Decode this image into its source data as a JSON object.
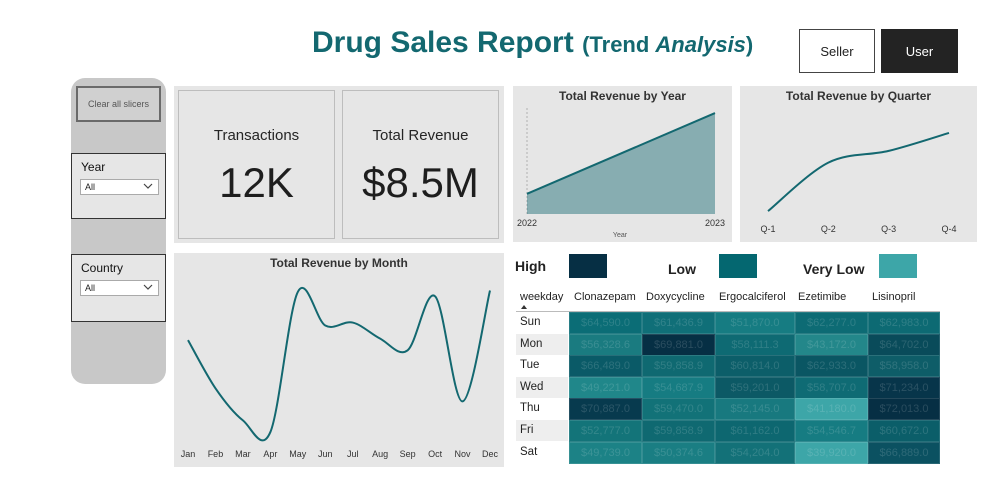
{
  "header": {
    "title_main": "Drug Sales Report",
    "title_paren_open": "(Trend ",
    "title_italic": "Analysis",
    "title_paren_close": ")",
    "seller_label": "Seller",
    "user_label": "User"
  },
  "slicers": {
    "clear_label": "Clear all slicers",
    "year": {
      "label": "Year",
      "value": "All"
    },
    "country": {
      "label": "Country",
      "value": "All"
    }
  },
  "kpis": {
    "transactions": {
      "label": "Transactions",
      "value": "12K"
    },
    "revenue": {
      "label": "Total Revenue",
      "value": "$8.5M"
    }
  },
  "chart_data": [
    {
      "type": "area",
      "title": "Total Revenue by Year",
      "xlabel": "Year",
      "categories": [
        "2022",
        "2023"
      ],
      "values": [
        0.2,
        1.0
      ],
      "ylim": [
        0,
        1.05
      ],
      "color": "#136870"
    },
    {
      "type": "line",
      "title": "Total Revenue by Quarter",
      "categories": [
        "Q-1",
        "Q-2",
        "Q-3",
        "Q-4"
      ],
      "values": [
        0.0,
        0.62,
        0.77,
        1.0
      ],
      "ylim": [
        -0.05,
        1.05
      ],
      "color": "#136870"
    },
    {
      "type": "line",
      "title": "Total Revenue by Month",
      "categories": [
        "Jan",
        "Feb",
        "Mar",
        "Apr",
        "May",
        "Jun",
        "Jul",
        "Aug",
        "Sep",
        "Oct",
        "Nov",
        "Dec"
      ],
      "values": [
        0.65,
        0.32,
        0.1,
        0.02,
        0.98,
        0.75,
        0.77,
        0.66,
        0.58,
        0.95,
        0.23,
        0.99
      ],
      "ylim": [
        0,
        1.0
      ],
      "color": "#136870"
    }
  ],
  "matrix": {
    "legend": [
      {
        "label": "High",
        "color": "#062f44"
      },
      {
        "label": "Low",
        "color": "#046770"
      },
      {
        "label": "Very Low",
        "color": "#3da6a8"
      }
    ],
    "row_header": "weekday",
    "columns": [
      "Clonazepam",
      "Doxycycline",
      "Ergocalciferol",
      "Ezetimibe",
      "Lisinopril"
    ],
    "rows": [
      {
        "day": "Sun",
        "cells": [
          {
            "t": "$64,590.0",
            "c": "#0b6d76"
          },
          {
            "t": "$61,436.9",
            "c": "#106f78"
          },
          {
            "t": "$51,870.0",
            "c": "#167c82"
          },
          {
            "t": "$62,277.0",
            "c": "#0d6b74"
          },
          {
            "t": "$62,983.0",
            "c": "#0d6a73"
          }
        ]
      },
      {
        "day": "Mon",
        "cells": [
          {
            "t": "$56,328.6",
            "c": "#1a7b80"
          },
          {
            "t": "$69,881.0",
            "c": "#062f44"
          },
          {
            "t": "$58,111.3",
            "c": "#0e6a73"
          },
          {
            "t": "$43,172.0",
            "c": "#23878a"
          },
          {
            "t": "$64,702.0",
            "c": "#094b5a"
          }
        ]
      },
      {
        "day": "Tue",
        "cells": [
          {
            "t": "$66,489.0",
            "c": "#0a5a67"
          },
          {
            "t": "$59,858.9",
            "c": "#0f6971"
          },
          {
            "t": "$60,814.0",
            "c": "#0c5e69"
          },
          {
            "t": "$62,933.0",
            "c": "#0a5663"
          },
          {
            "t": "$58,958.0",
            "c": "#0e5d68"
          }
        ]
      },
      {
        "day": "Wed",
        "cells": [
          {
            "t": "$49,221.0",
            "c": "#20878a"
          },
          {
            "t": "$54,687.9",
            "c": "#167c82"
          },
          {
            "t": "$59,201.0",
            "c": "#0c5965"
          },
          {
            "t": "$58,707.0",
            "c": "#0f6b74"
          },
          {
            "t": "$71,234.0",
            "c": "#07354a"
          }
        ]
      },
      {
        "day": "Thu",
        "cells": [
          {
            "t": "$70,887.0",
            "c": "#073a4e"
          },
          {
            "t": "$59,470.0",
            "c": "#127278"
          },
          {
            "t": "$52,145.0",
            "c": "#18797f"
          },
          {
            "t": "$41,180.0",
            "c": "#3da6a8"
          },
          {
            "t": "$72,013.0",
            "c": "#062f44"
          }
        ]
      },
      {
        "day": "Fri",
        "cells": [
          {
            "t": "$52,777.0",
            "c": "#137479"
          },
          {
            "t": "$59,858.9",
            "c": "#0f6971"
          },
          {
            "t": "$61,162.0",
            "c": "#0d6770"
          },
          {
            "t": "$54,546.7",
            "c": "#167c82"
          },
          {
            "t": "$60,672.0",
            "c": "#0b5e69"
          }
        ]
      },
      {
        "day": "Sat",
        "cells": [
          {
            "t": "$49,739.0",
            "c": "#1c8286"
          },
          {
            "t": "$50,374.6",
            "c": "#1a7e83"
          },
          {
            "t": "$54,204.0",
            "c": "#137178"
          },
          {
            "t": "$39,920.0",
            "c": "#3da6a8"
          },
          {
            "t": "$66,889.0",
            "c": "#0b5161"
          }
        ]
      }
    ]
  }
}
